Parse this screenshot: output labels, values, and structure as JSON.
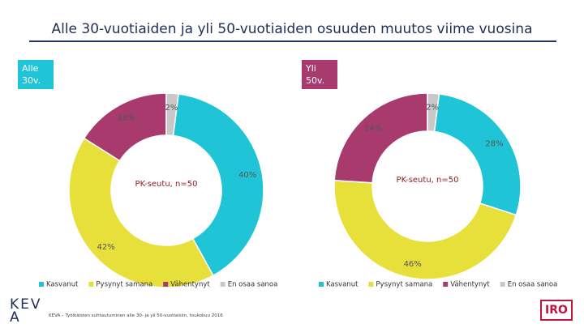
{
  "title": "Alle 30-vuotiaiden ja yli 50-vuotiaiden osuuden muutos viime vuosina",
  "chart_data": [
    {
      "type": "donut",
      "label": "Alle 30v.",
      "label_color": "#1fc5d6",
      "annotation": "PK-seutu, n=50",
      "categories": [
        "Kasvanut",
        "Pysynyt samana",
        "Vähentynyt",
        "En osaa sanoa"
      ],
      "values": [
        40,
        42,
        16,
        2
      ],
      "value_labels": [
        "40%",
        "42%",
        "16%",
        "2%"
      ],
      "colors": [
        "#1fc5d6",
        "#e8e03a",
        "#a83a6e",
        "#c8c8c8"
      ]
    },
    {
      "type": "donut",
      "label": "Yli 50v.",
      "label_color": "#a83a6e",
      "annotation": "PK-seutu, n=50",
      "categories": [
        "Kasvanut",
        "Pysynyt samana",
        "Vähentynyt",
        "En osaa sanoa"
      ],
      "values": [
        28,
        46,
        24,
        2
      ],
      "value_labels": [
        "28%",
        "46%",
        "24%",
        "2%"
      ],
      "colors": [
        "#1fc5d6",
        "#e8e03a",
        "#a83a6e",
        "#c8c8c8"
      ]
    }
  ],
  "source": "KEVA – Työikäisten suhtautuminen alle 30- ja yli 50-vuotiaisiin, toukokuu 2016",
  "logo_left": "KEVA",
  "logo_right": "IRO"
}
